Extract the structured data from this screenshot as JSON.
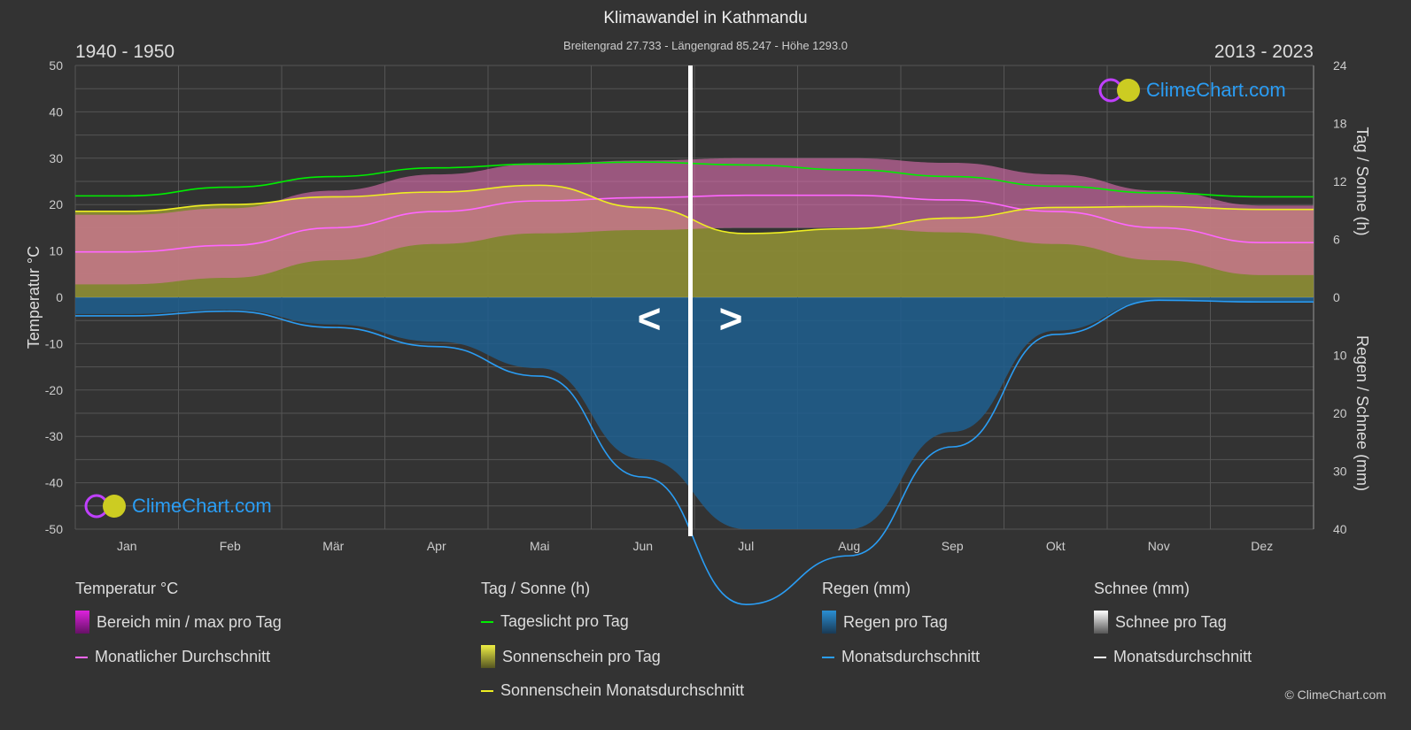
{
  "header": {
    "title": "Klimawandel in Kathmandu",
    "subtitle": "Breitengrad 27.733 - Längengrad 85.247 - Höhe 1293.0",
    "period_left": "1940 - 1950",
    "period_right": "2013 - 2023"
  },
  "logo_text": "ClimeChart.com",
  "copyright": "© ClimeChart.com",
  "nav": {
    "prev": "<",
    "next": ">"
  },
  "chart_data": {
    "type": "line",
    "categories": [
      "Jan",
      "Feb",
      "Mär",
      "Apr",
      "Mai",
      "Jun",
      "Jul",
      "Aug",
      "Sep",
      "Okt",
      "Nov",
      "Dez"
    ],
    "axes": {
      "left": {
        "label": "Temperatur °C",
        "range": [
          -50,
          50
        ],
        "ticks": [
          50,
          40,
          30,
          20,
          10,
          0,
          -10,
          -20,
          -30,
          -40,
          -50
        ]
      },
      "right_top": {
        "label": "Tag / Sonne (h)",
        "range": [
          0,
          24
        ],
        "ticks": [
          24,
          18,
          12,
          6,
          0
        ]
      },
      "right_bottom": {
        "label": "Regen / Schnee (mm)",
        "range": [
          0,
          40
        ],
        "ticks": [
          0,
          10,
          20,
          30,
          40
        ]
      }
    },
    "grid": true,
    "series": [
      {
        "name": "Monatlicher Durchschnitt",
        "axis": "left",
        "color": "#ff66ff",
        "values": [
          9.8,
          11.2,
          15.0,
          18.5,
          20.8,
          21.5,
          22.0,
          22.0,
          21.0,
          18.5,
          15.0,
          11.8
        ]
      },
      {
        "name": "Tageslicht pro Tag",
        "axis": "right_top",
        "color": "#00ee00",
        "values": [
          10.5,
          11.4,
          12.5,
          13.4,
          13.8,
          14.0,
          13.7,
          13.2,
          12.5,
          11.5,
          10.8,
          10.4
        ]
      },
      {
        "name": "Sonnenschein Monatsdurchschnitt",
        "axis": "right_top",
        "color": "#eeee22",
        "values": [
          8.9,
          9.6,
          10.4,
          10.9,
          11.6,
          9.3,
          6.6,
          7.1,
          8.2,
          9.3,
          9.4,
          9.1
        ]
      },
      {
        "name": "Monatsdurchschnitt",
        "axis": "right_bottom",
        "color": "#2a9df4",
        "values": [
          3.2,
          2.4,
          5.2,
          8.5,
          13.6,
          31.0,
          53.0,
          44.6,
          25.8,
          6.4,
          0.5,
          0.8
        ]
      }
    ]
  },
  "legend": {
    "groups": [
      {
        "title": "Temperatur °C",
        "items": [
          {
            "label": "Bereich min / max pro Tag",
            "color": "#dd22dd"
          },
          {
            "label": "Monatlicher Durchschnitt",
            "color": "#ff66ff"
          }
        ]
      },
      {
        "title": "Tag / Sonne (h)",
        "items": [
          {
            "label": "Tageslicht pro Tag",
            "color": "#00ee00"
          },
          {
            "label": "Sonnenschein pro Tag",
            "color": "#cccc33"
          },
          {
            "label": "Sonnenschein Monatsdurchschnitt",
            "color": "#eeee22"
          }
        ]
      },
      {
        "title": "Regen (mm)",
        "items": [
          {
            "label": "Regen pro Tag",
            "color": "#2a8fd4"
          },
          {
            "label": "Monatsdurchschnitt",
            "color": "#2a9df4"
          }
        ]
      },
      {
        "title": "Schnee (mm)",
        "items": [
          {
            "label": "Schnee pro Tag",
            "color": "#dddddd"
          },
          {
            "label": "Monatsdurchschnitt",
            "color": "#ffffff"
          }
        ]
      }
    ]
  }
}
